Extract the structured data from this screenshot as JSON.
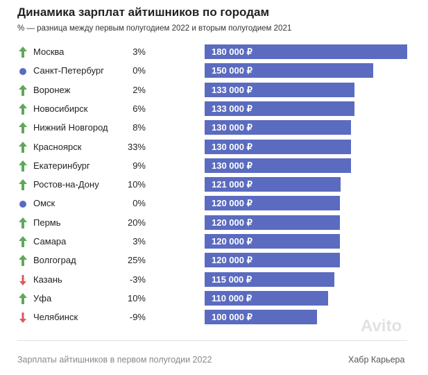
{
  "chart_data": {
    "type": "bar",
    "orientation": "horizontal",
    "title": "Динамика зарплат айтишников по городам",
    "subtitle": "% — разница между первым полугодием 2022 и вторым полугодием 2021",
    "categories": [
      "Москва",
      "Санкт-Петербург",
      "Воронеж",
      "Новосибирск",
      "Нижний Новгород",
      "Красноярск",
      "Екатеринбург",
      "Ростов-на-Дону",
      "Омск",
      "Пермь",
      "Самара",
      "Волгоград",
      "Казань",
      "Уфа",
      "Челябинск"
    ],
    "values": [
      180000,
      150000,
      133000,
      133000,
      130000,
      130000,
      130000,
      121000,
      120000,
      120000,
      120000,
      120000,
      115000,
      110000,
      100000
    ],
    "value_labels": [
      "180 000 ₽",
      "150 000 ₽",
      "133 000 ₽",
      "133 000 ₽",
      "130 000 ₽",
      "130 000 ₽",
      "130 000 ₽",
      "121 000 ₽",
      "120 000 ₽",
      "120 000 ₽",
      "120 000 ₽",
      "120 000 ₽",
      "115 000 ₽",
      "110 000 ₽",
      "100 000 ₽"
    ],
    "changes": [
      "3%",
      "0%",
      "2%",
      "6%",
      "8%",
      "33%",
      "9%",
      "10%",
      "0%",
      "20%",
      "3%",
      "25%",
      "-3%",
      "10%",
      "-9%"
    ],
    "trend": [
      "up",
      "flat",
      "up",
      "up",
      "up",
      "up",
      "up",
      "up",
      "flat",
      "up",
      "up",
      "up",
      "down",
      "up",
      "down"
    ],
    "xlim": [
      0,
      180000
    ],
    "grid": false
  },
  "footer": {
    "caption": "Зарплаты айтишников в первом полугодии 2022",
    "brand": "Хабр Карьера",
    "watermark": "Avito"
  },
  "colors": {
    "bar": "#5a6bc0",
    "up": "#5fa85a",
    "down": "#e0565a",
    "flat": "#5a6bc0"
  }
}
